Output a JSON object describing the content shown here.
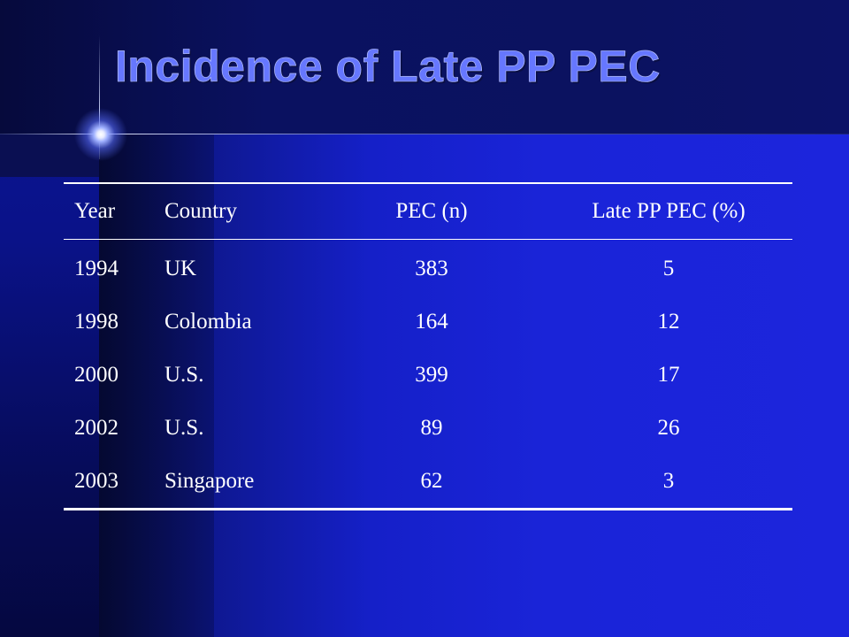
{
  "slide": {
    "title": "Incidence of Late PP PEC"
  },
  "table": {
    "headers": {
      "year": "Year",
      "country": "Country",
      "pec": "PEC (n)",
      "late": "Late PP PEC (%)"
    },
    "rows": [
      {
        "year": "1994",
        "country": "UK",
        "pec": "383",
        "late": "5"
      },
      {
        "year": "1998",
        "country": "Colombia",
        "pec": "164",
        "late": "12"
      },
      {
        "year": "2000",
        "country": "U.S.",
        "pec": "399",
        "late": "17"
      },
      {
        "year": "2002",
        "country": "U.S.",
        "pec": "89",
        "late": "26"
      },
      {
        "year": "2003",
        "country": "Singapore",
        "pec": "62",
        "late": "3"
      }
    ]
  },
  "colors": {
    "background": "#1a24d8",
    "title": "#6677ff",
    "table_text": "#ffffff",
    "rules": "#ffffff"
  },
  "icons": {
    "sparkle": "glowing-star"
  }
}
